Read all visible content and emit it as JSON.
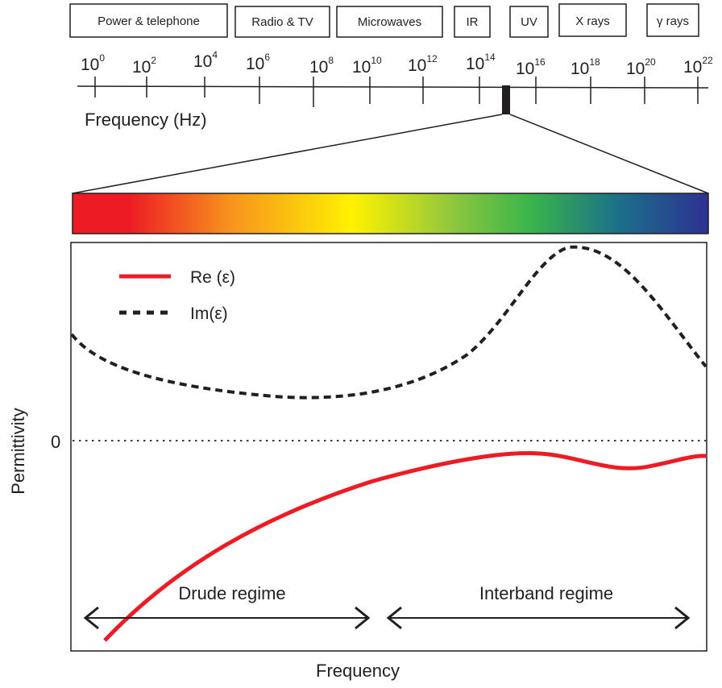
{
  "spectrum": {
    "bands": [
      {
        "label": "Power & telephone"
      },
      {
        "label": "Radio & TV"
      },
      {
        "label": "Microwaves"
      },
      {
        "label": "IR"
      },
      {
        "label": "UV"
      },
      {
        "label": "X rays"
      },
      {
        "label": "γ rays"
      }
    ],
    "tick_labels": [
      {
        "base": "10",
        "exp": "0"
      },
      {
        "base": "10",
        "exp": "2"
      },
      {
        "base": "10",
        "exp": "4"
      },
      {
        "base": "10",
        "exp": "6"
      },
      {
        "base": "10",
        "exp": "8"
      },
      {
        "base": "10",
        "exp": "10"
      },
      {
        "base": "10",
        "exp": "12"
      },
      {
        "base": "10",
        "exp": "14"
      },
      {
        "base": "10",
        "exp": "16"
      },
      {
        "base": "10",
        "exp": "18"
      },
      {
        "base": "10",
        "exp": "20"
      },
      {
        "base": "10",
        "exp": "22"
      }
    ],
    "axis_label": "Frequency (Hz)"
  },
  "visible_gradient": [
    "#ed1c24",
    "#f7941d",
    "#fff200",
    "#8dc63f",
    "#39b54a",
    "#1b6f8a",
    "#2e3192"
  ],
  "plot": {
    "ylabel": "Permittivity",
    "xlabel": "Frequency",
    "zero_label": "0",
    "legend": [
      {
        "label": "Re (ε)",
        "color": "#ed1c24",
        "style": "solid"
      },
      {
        "label": "Im(ε)",
        "color": "#231f20",
        "style": "dashed"
      }
    ],
    "regimes": [
      {
        "label": "Drude regime"
      },
      {
        "label": "Interband regime"
      }
    ]
  }
}
